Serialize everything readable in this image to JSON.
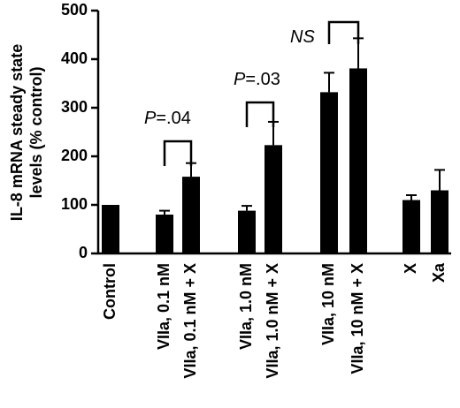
{
  "chart_data": {
    "type": "bar",
    "ylabel_lines": [
      "IL-8 mRNA steady state",
      "levels (% control)"
    ],
    "ylim": [
      0,
      500
    ],
    "yticks": [
      0,
      100,
      200,
      300,
      400,
      500
    ],
    "categories": [
      "Control",
      "VIIa, 0.1 nM",
      "VIIa, 0.1 nM + X",
      "VIIa, 1.0 nM",
      "VIIa, 1.0 nM + X",
      "VIIa, 10 nM",
      "VIIa, 10 nM + X",
      "X",
      "Xa"
    ],
    "values": [
      100,
      80,
      158,
      88,
      223,
      332,
      381,
      110,
      130
    ],
    "errors": [
      0,
      8,
      28,
      10,
      48,
      40,
      62,
      10,
      42
    ],
    "legend": "none",
    "grid": false,
    "annotations": [
      {
        "text": "P=.04",
        "between": [
          1,
          2
        ]
      },
      {
        "text": "P=.03",
        "between": [
          3,
          4
        ]
      },
      {
        "text": "NS",
        "between": [
          5,
          6
        ]
      }
    ]
  }
}
